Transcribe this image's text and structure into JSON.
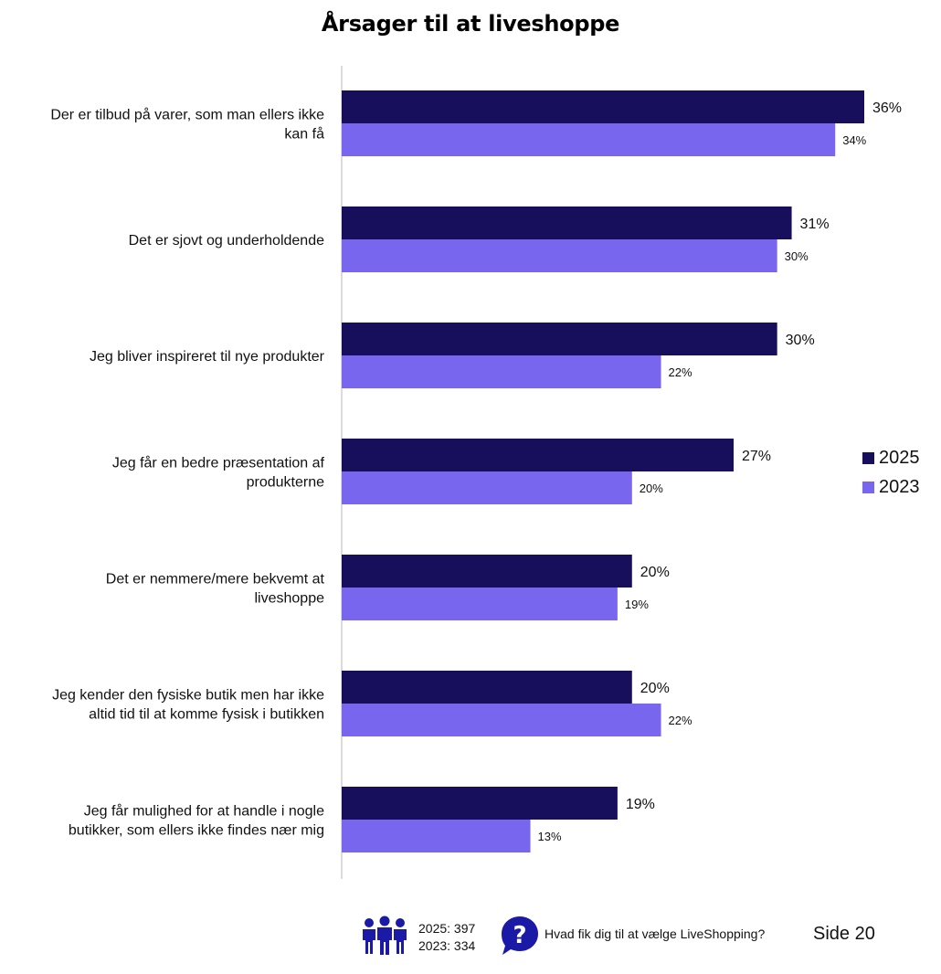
{
  "colors": {
    "y2025": "#170f5c",
    "y2023": "#7866ee",
    "axis": "#d0d0d0",
    "icon": "#1a1aa6"
  },
  "chart_data": {
    "type": "bar",
    "orientation": "horizontal",
    "title": "Årsager til at liveshoppe",
    "categories": [
      [
        "Der er tilbud på varer, som man ellers ikke",
        "kan få"
      ],
      [
        "Det er sjovt og underholdende"
      ],
      [
        "Jeg bliver inspireret til nye produkter"
      ],
      [
        "Jeg får en bedre præsentation af",
        "produkterne"
      ],
      [
        "Det er nemmere/mere bekvemt at",
        "liveshoppe"
      ],
      [
        "Jeg kender den fysiske butik men har ikke",
        "altid tid til at komme fysisk i butikken"
      ],
      [
        "Jeg får mulighed for at handle i nogle",
        "butikker, som ellers ikke findes nær mig"
      ]
    ],
    "series": [
      {
        "name": "2025",
        "values": [
          36,
          31,
          30,
          27,
          20,
          20,
          19
        ],
        "labels": [
          "36%",
          "31%",
          "30%",
          "27%",
          "20%",
          "20%",
          "19%"
        ]
      },
      {
        "name": "2023",
        "values": [
          34,
          30,
          22,
          20,
          19,
          22,
          13
        ],
        "labels": [
          "34%",
          "30%",
          "22%",
          "20%",
          "19%",
          "22%",
          "13%"
        ]
      }
    ],
    "xlim": [
      0,
      36
    ],
    "grid": false,
    "legend_position": "right"
  },
  "footer": {
    "sample_2025": "2025: 397",
    "sample_2023": "2023: 334",
    "question": "Hvad fik dig til at vælge LiveShopping?",
    "page": "Side 20"
  }
}
